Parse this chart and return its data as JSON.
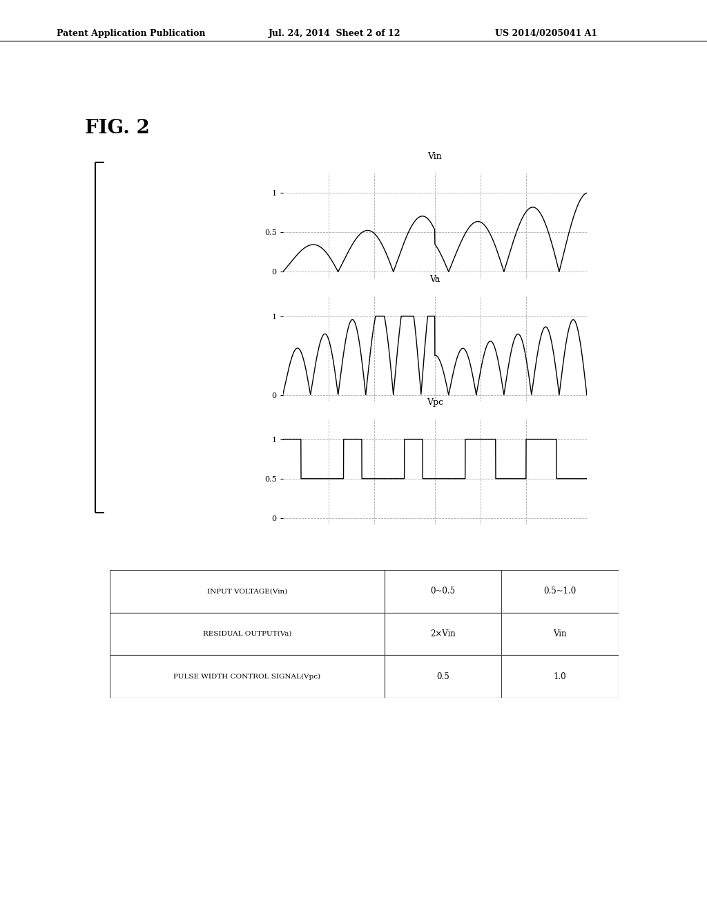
{
  "header_left": "Patent Application Publication",
  "header_mid": "Jul. 24, 2014  Sheet 2 of 12",
  "header_right": "US 2014/0205041 A1",
  "fig_label": "FIG. 2",
  "signal_labels": [
    "Vin",
    "Va",
    "Vpc"
  ],
  "table_headers": [
    "INPUT VOLTAGE(Vin)",
    "0~0.5",
    "0.5~1.0"
  ],
  "table_row2": [
    "RESIDUAL OUTPUT(Va)",
    "2×Vin",
    "Vin"
  ],
  "table_row3": [
    "PULSE WIDTH CONTROL SIGNAL(Vpc)",
    "0.5",
    "1.0"
  ],
  "bg_color": "#ffffff",
  "line_color": "#000000",
  "grid_color": "#aaaaaa",
  "axis_color": "#000000"
}
